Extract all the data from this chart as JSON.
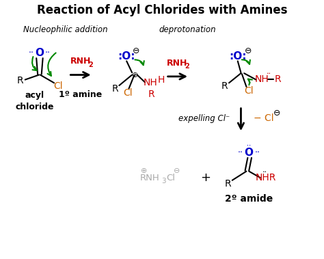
{
  "title": "Reaction of Acyl Chlorides with Amines",
  "title_fontsize": 12,
  "bg_color": "#ffffff",
  "figsize": [
    4.74,
    3.79
  ],
  "dpi": 100,
  "label_nucleophilic": "Nucleophilic addition",
  "label_deprotonation": "deprotonation",
  "label_acyl": "acyl\nchloride",
  "label_1amine": "1º amine",
  "label_expelling": "expelling Cl⁻",
  "label_2amide": "2º amide",
  "label_plus": "+",
  "colors": {
    "black": "#000000",
    "red": "#cc0000",
    "blue": "#0000cc",
    "green": "#008800",
    "orange": "#cc6600",
    "gray": "#aaaaaa"
  }
}
